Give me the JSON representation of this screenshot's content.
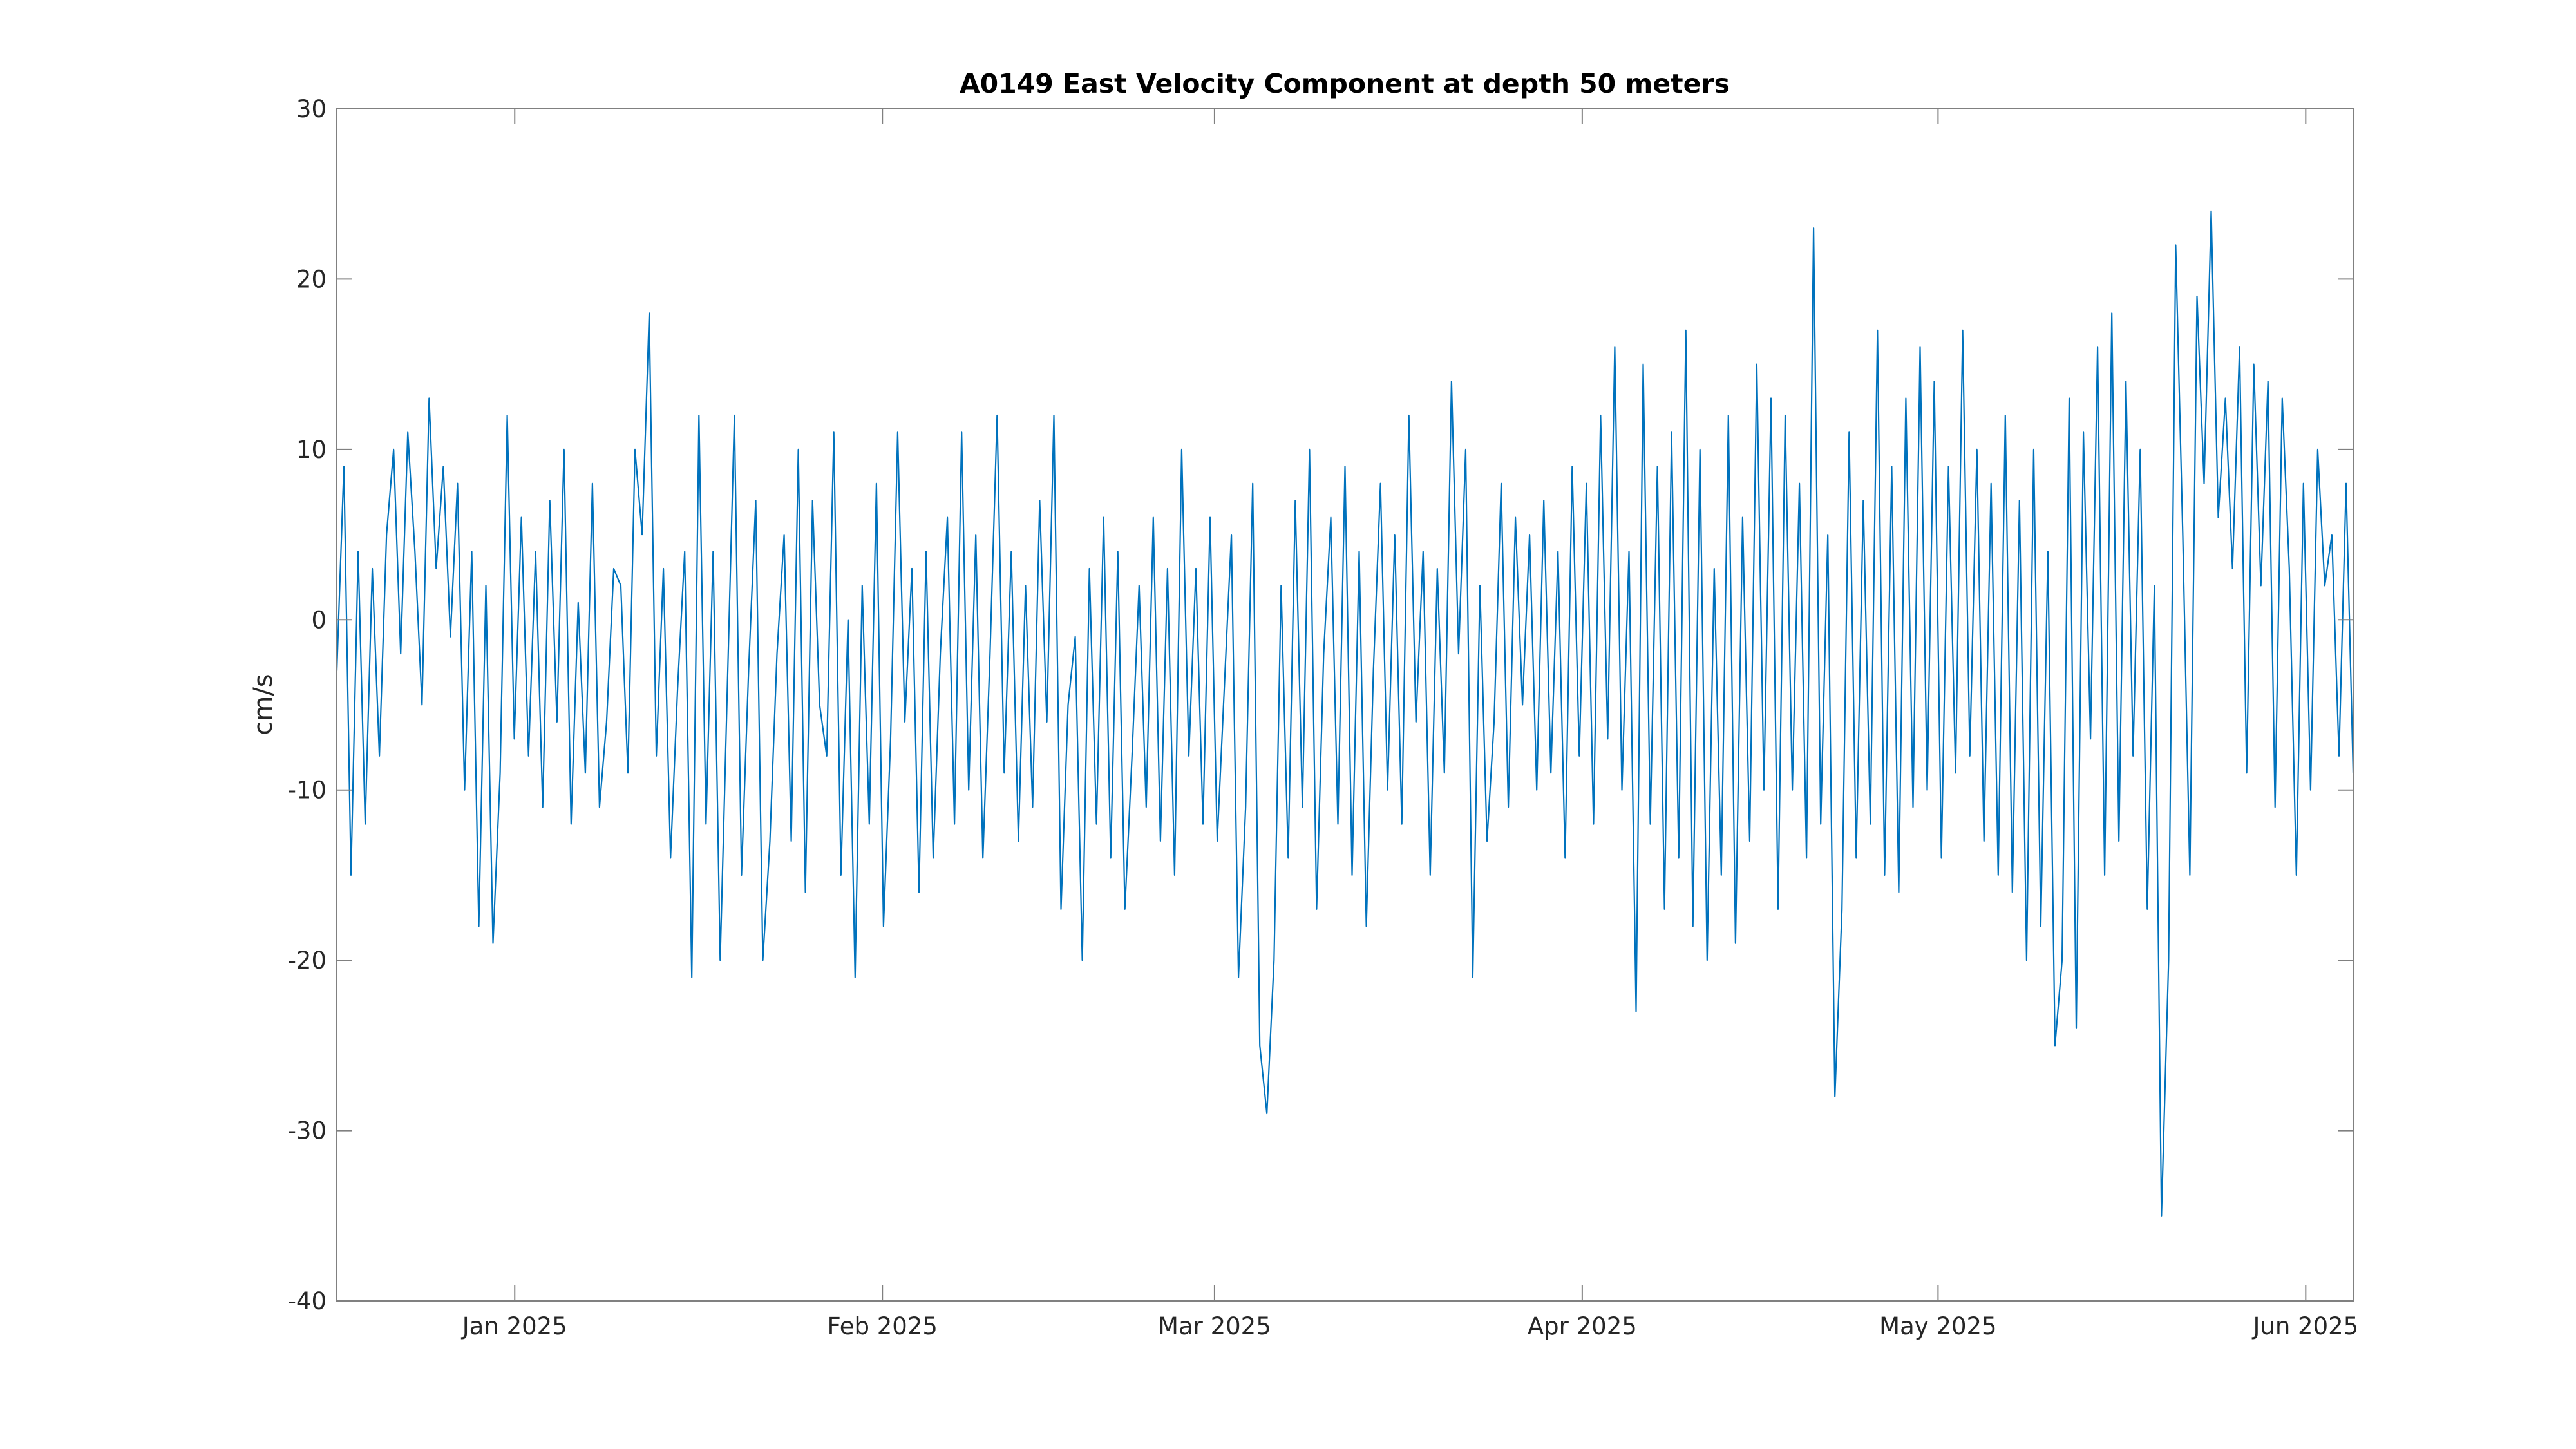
{
  "chart_data": {
    "type": "line",
    "title": "A0149 East Velocity Component at depth 50 meters",
    "xlabel": "",
    "ylabel": "cm/s",
    "xlim": [
      "2024-12-17",
      "2025-06-05"
    ],
    "ylim": [
      -40,
      30
    ],
    "yticks": [
      -40,
      -30,
      -20,
      -10,
      0,
      10,
      20,
      30
    ],
    "xticks": [
      {
        "date": "2025-01-01",
        "label": "Jan 2025"
      },
      {
        "date": "2025-02-01",
        "label": "Feb 2025"
      },
      {
        "date": "2025-03-01",
        "label": "Mar 2025"
      },
      {
        "date": "2025-04-01",
        "label": "Apr 2025"
      },
      {
        "date": "2025-05-01",
        "label": "May 2025"
      },
      {
        "date": "2025-06-01",
        "label": "Jun 2025"
      }
    ],
    "grid": false,
    "series": [
      {
        "color": "#0072BD",
        "x_start": "2024-12-17",
        "x_end": "2025-06-05",
        "values": [
          -3,
          9,
          -15,
          4,
          -12,
          3,
          -8,
          5,
          10,
          -2,
          11,
          4,
          -5,
          13,
          3,
          9,
          -1,
          8,
          -10,
          4,
          -18,
          2,
          -19,
          -9,
          12,
          -7,
          6,
          -8,
          4,
          -11,
          7,
          -6,
          10,
          -12,
          1,
          -9,
          8,
          -11,
          -6,
          3,
          2,
          -9,
          10,
          5,
          18,
          -8,
          3,
          -14,
          -4,
          4,
          -21,
          12,
          -12,
          4,
          -20,
          -4,
          12,
          -15,
          -3,
          7,
          -20,
          -13,
          -2,
          5,
          -13,
          10,
          -16,
          7,
          -5,
          -8,
          11,
          -15,
          0,
          -21,
          2,
          -12,
          8,
          -18,
          -7,
          11,
          -6,
          3,
          -16,
          4,
          -14,
          -2,
          6,
          -12,
          11,
          -10,
          5,
          -14,
          -2,
          12,
          -9,
          4,
          -13,
          2,
          -11,
          7,
          -6,
          12,
          -17,
          -5,
          -1,
          -20,
          3,
          -12,
          6,
          -14,
          4,
          -17,
          -8,
          2,
          -11,
          6,
          -13,
          3,
          -15,
          10,
          -8,
          3,
          -12,
          6,
          -13,
          -4,
          5,
          -21,
          -11,
          8,
          -25,
          -29,
          -20,
          2,
          -14,
          7,
          -11,
          10,
          -17,
          -2,
          6,
          -12,
          9,
          -15,
          4,
          -18,
          -3,
          8,
          -10,
          5,
          -12,
          12,
          -6,
          4,
          -15,
          3,
          -9,
          14,
          -2,
          10,
          -21,
          2,
          -13,
          -6,
          8,
          -11,
          6,
          -5,
          5,
          -10,
          7,
          -9,
          4,
          -14,
          9,
          -8,
          8,
          -12,
          12,
          -7,
          16,
          -10,
          4,
          -23,
          15,
          -12,
          9,
          -17,
          11,
          -14,
          17,
          -18,
          10,
          -20,
          3,
          -15,
          12,
          -19,
          6,
          -13,
          15,
          -10,
          13,
          -17,
          12,
          -10,
          8,
          -14,
          23,
          -12,
          5,
          -28,
          -17,
          11,
          -14,
          7,
          -12,
          17,
          -15,
          9,
          -16,
          13,
          -11,
          16,
          -10,
          14,
          -14,
          9,
          -9,
          17,
          -8,
          10,
          -13,
          8,
          -15,
          12,
          -16,
          7,
          -20,
          10,
          -18,
          4,
          -25,
          -20,
          13,
          -24,
          11,
          -7,
          16,
          -15,
          18,
          -13,
          14,
          -8,
          10,
          -17,
          2,
          -35,
          -20,
          22,
          5,
          -15,
          19,
          8,
          24,
          6,
          13,
          3,
          16,
          -9,
          15,
          2,
          14,
          -11,
          13,
          3,
          -15,
          8,
          -10,
          10,
          2,
          5,
          -8,
          8,
          -9
        ]
      }
    ]
  }
}
